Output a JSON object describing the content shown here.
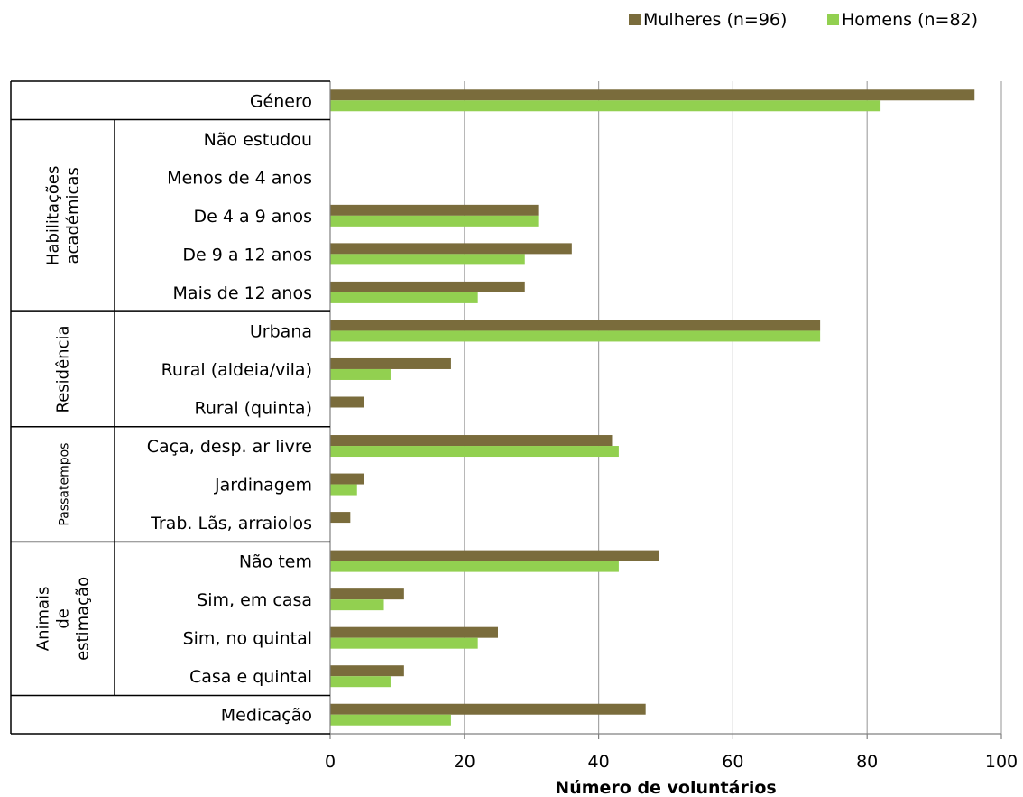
{
  "chart_data": {
    "type": "bar",
    "orientation": "horizontal",
    "xlabel": "Número de voluntários",
    "xlim": [
      0,
      100
    ],
    "xticks": [
      0,
      20,
      40,
      60,
      80,
      100
    ],
    "grid": true,
    "legend_position": "top-right",
    "colors": {
      "Mulheres (n=96)": "#7a6c3c",
      "Homens (n=82)": "#92d050"
    },
    "categories": [
      "Género",
      "Não estudou",
      "Menos de 4 anos",
      "De 4 a 9 anos",
      "De 9 a 12 anos",
      "Mais de 12 anos",
      "Urbana",
      "Rural (aldeia/vila)",
      "Rural (quinta)",
      "Caça, desp. ar livre",
      "Jardinagem",
      "Trab. Lãs, arraiolos",
      "Não tem",
      "Sim, em casa",
      "Sim, no quintal",
      "Casa e quintal",
      "Medicação"
    ],
    "groups": [
      {
        "label": "",
        "start": 0,
        "end": 0
      },
      {
        "label": "Habilitações académicas",
        "lines": [
          "Habilitações",
          "académicas"
        ],
        "start": 1,
        "end": 5
      },
      {
        "label": "Residência",
        "lines": [
          "Residência"
        ],
        "start": 6,
        "end": 8
      },
      {
        "label": "Passatempos",
        "lines": [
          "Passatempos"
        ],
        "start": 9,
        "end": 11
      },
      {
        "label": "Animais de estimação",
        "lines": [
          "Animais",
          "de",
          "estimação"
        ],
        "start": 12,
        "end": 15
      },
      {
        "label": "",
        "start": 16,
        "end": 16
      }
    ],
    "series": [
      {
        "name": "Mulheres (n=96)",
        "values": [
          96,
          0,
          0,
          31,
          36,
          29,
          73,
          18,
          5,
          42,
          5,
          3,
          49,
          11,
          25,
          11,
          47
        ]
      },
      {
        "name": "Homens (n=82)",
        "values": [
          82,
          0,
          0,
          31,
          29,
          22,
          73,
          9,
          0,
          43,
          4,
          0,
          43,
          8,
          22,
          9,
          18
        ]
      }
    ]
  }
}
